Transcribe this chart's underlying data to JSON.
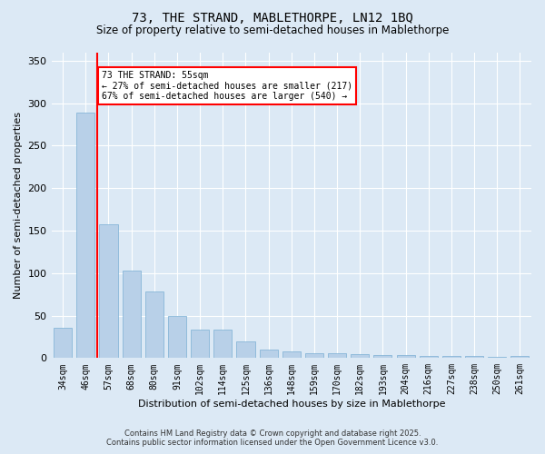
{
  "title1": "73, THE STRAND, MABLETHORPE, LN12 1BQ",
  "title2": "Size of property relative to semi-detached houses in Mablethorpe",
  "xlabel": "Distribution of semi-detached houses by size in Mablethorpe",
  "ylabel": "Number of semi-detached properties",
  "categories": [
    "34sqm",
    "46sqm",
    "57sqm",
    "68sqm",
    "80sqm",
    "91sqm",
    "102sqm",
    "114sqm",
    "125sqm",
    "136sqm",
    "148sqm",
    "159sqm",
    "170sqm",
    "182sqm",
    "193sqm",
    "204sqm",
    "216sqm",
    "227sqm",
    "238sqm",
    "250sqm",
    "261sqm"
  ],
  "values": [
    36,
    289,
    158,
    103,
    78,
    50,
    33,
    33,
    20,
    10,
    8,
    6,
    6,
    5,
    4,
    4,
    3,
    2,
    2,
    1,
    3
  ],
  "bar_color": "#b8d0e8",
  "bar_edge_color": "#7aafd4",
  "vline_x": 1.5,
  "vline_color": "red",
  "annotation_title": "73 THE STRAND: 55sqm",
  "annotation_line1": "← 27% of semi-detached houses are smaller (217)",
  "annotation_line2": "67% of semi-detached houses are larger (540) →",
  "annotation_box_color": "white",
  "annotation_box_edge": "red",
  "bg_color": "#dce9f5",
  "footnote1": "Contains HM Land Registry data © Crown copyright and database right 2025.",
  "footnote2": "Contains public sector information licensed under the Open Government Licence v3.0.",
  "ylim": [
    0,
    360
  ],
  "yticks": [
    0,
    50,
    100,
    150,
    200,
    250,
    300,
    350
  ]
}
